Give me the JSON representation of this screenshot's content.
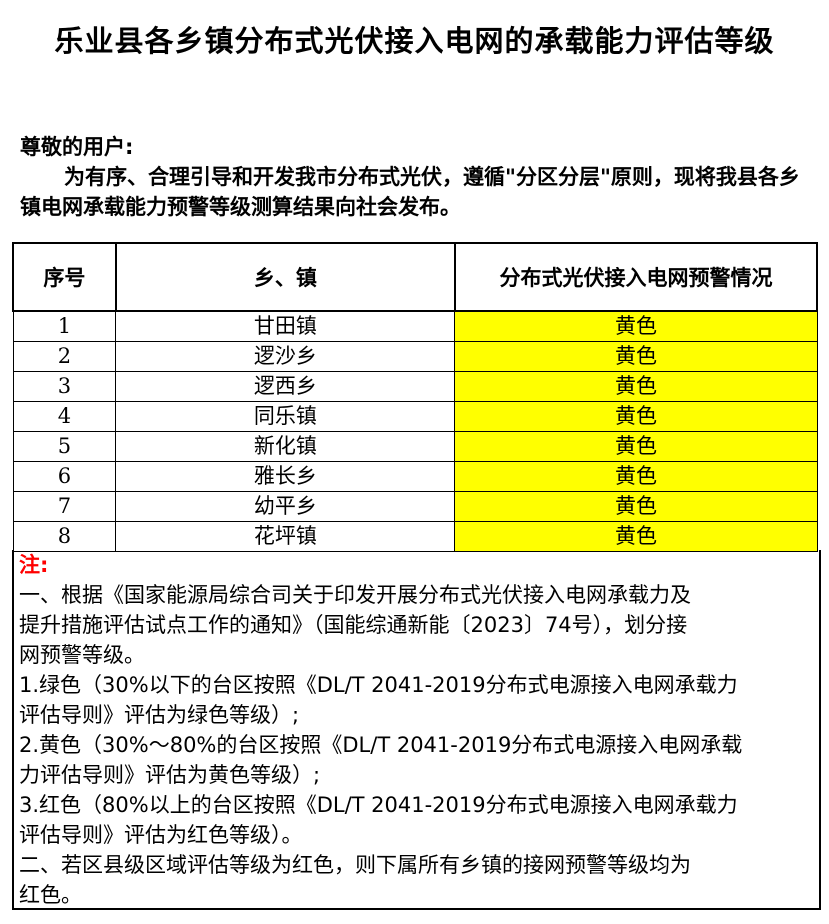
{
  "title": "乐业县各乡镇分布式光伏接入电网的承载能力评估等级",
  "intro": {
    "greeting": "尊敬的用户:",
    "paragraph": "为有序、合理引导和开发我市分布式光伏，遵循\"分区分层\"原则，现将我县各乡镇电网承载能力预警等级测算结果向社会发布。"
  },
  "table": {
    "headers": [
      "序号",
      "乡、镇",
      "分布式光伏接入电网预警情况"
    ],
    "rows": [
      {
        "no": "1",
        "town": "甘田镇",
        "level": "黄色"
      },
      {
        "no": "2",
        "town": "逻沙乡",
        "level": "黄色"
      },
      {
        "no": "3",
        "town": "逻西乡",
        "level": "黄色"
      },
      {
        "no": "4",
        "town": "同乐镇",
        "level": "黄色"
      },
      {
        "no": "5",
        "town": "新化镇",
        "level": "黄色"
      },
      {
        "no": "6",
        "town": "雅长乡",
        "level": "黄色"
      },
      {
        "no": "7",
        "town": "幼平乡",
        "level": "黄色"
      },
      {
        "no": "8",
        "town": "花坪镇",
        "level": "黄色"
      }
    ],
    "yellow_color": "#ffff00"
  },
  "notes": {
    "heading": "注:",
    "lines": [
      "一、根据《国家能源局综合司关于印发开展分布式光伏接入电网承载力及",
      "提升措施评估试点工作的通知》（国能综通新能〔2023〕74号），划分接",
      "网预警等级。",
      "1.绿色（30%以下的台区按照《DL/T 2041-2019分布式电源接入电网承载力",
      "评估导则》评估为绿色等级）;",
      "2.黄色（30%～80%的台区按照《DL/T 2041-2019分布式电源接入电网承载",
      "力评估导则》评估为黄色等级）;",
      "3.红色（80%以上的台区按照《DL/T 2041-2019分布式电源接入电网承载力",
      "评估导则》评估为红色等级）。",
      "二、若区县级区域评估等级为红色，则下属所有乡镇的接网预警等级均为",
      "红色。"
    ]
  }
}
